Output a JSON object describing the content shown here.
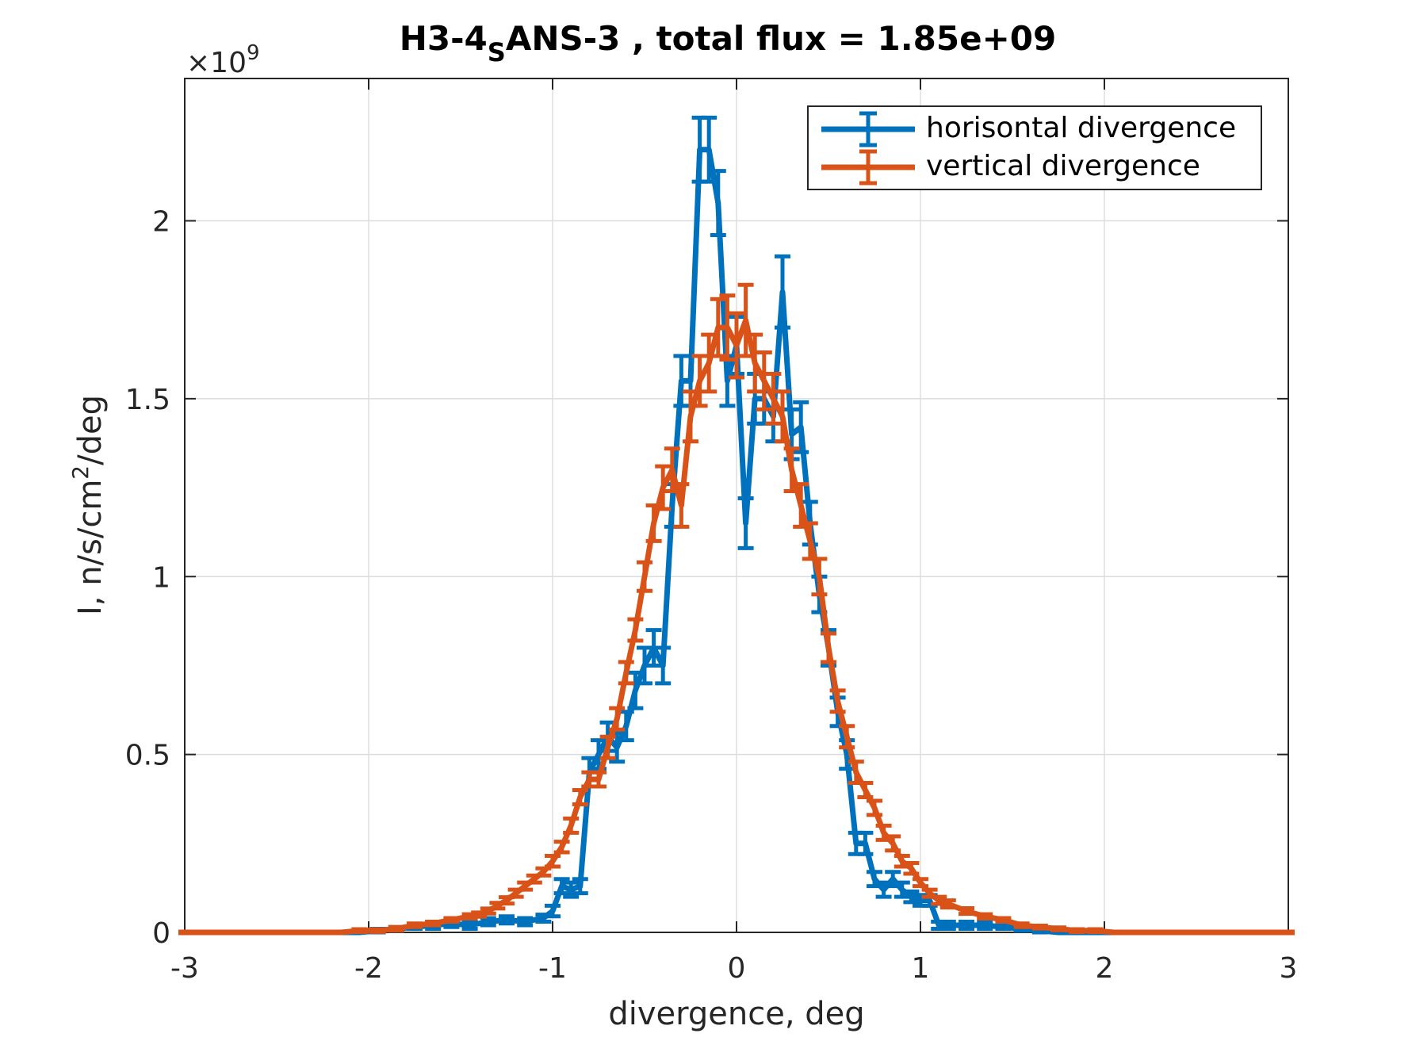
{
  "chart_data": {
    "type": "line",
    "title_prefix": "H3-4",
    "title_sub": "S",
    "title_suffix": "ANS-3 , total flux =  1.85e+09",
    "xlabel": "divergence, deg",
    "ylabel_prefix": "I, n/s/cm",
    "ylabel_sup": "2",
    "ylabel_suffix": "/deg",
    "y_multiplier_base": "×10",
    "y_multiplier_exp": "9",
    "xlim": [
      -3,
      3
    ],
    "ylim": [
      0,
      2.4
    ],
    "xticks": [
      -3,
      -2,
      -1,
      0,
      1,
      2,
      3
    ],
    "xtick_labels": [
      "-3",
      "-2",
      "-1",
      "0",
      "1",
      "2",
      "3"
    ],
    "yticks": [
      0,
      0.5,
      1,
      1.5,
      2
    ],
    "ytick_labels": [
      "0",
      "0.5",
      "1",
      "1.5",
      "2"
    ],
    "grid": true,
    "legend_position": "top-right",
    "errorbars": true,
    "series": [
      {
        "name": "horisontal divergence",
        "color": "#0072bd",
        "x": [
          -3.05,
          -2.95,
          -2.85,
          -2.75,
          -2.65,
          -2.55,
          -2.45,
          -2.35,
          -2.25,
          -2.15,
          -2.05,
          -1.95,
          -1.85,
          -1.75,
          -1.65,
          -1.55,
          -1.45,
          -1.35,
          -1.25,
          -1.15,
          -1.05,
          -1.0,
          -0.95,
          -0.9,
          -0.85,
          -0.8,
          -0.75,
          -0.7,
          -0.65,
          -0.6,
          -0.55,
          -0.5,
          -0.45,
          -0.4,
          -0.35,
          -0.3,
          -0.25,
          -0.2,
          -0.15,
          -0.1,
          -0.05,
          0.0,
          0.05,
          0.1,
          0.15,
          0.2,
          0.25,
          0.3,
          0.35,
          0.4,
          0.45,
          0.5,
          0.55,
          0.6,
          0.65,
          0.7,
          0.75,
          0.8,
          0.85,
          0.9,
          0.95,
          1.0,
          1.05,
          1.1,
          1.15,
          1.25,
          1.35,
          1.45,
          1.55,
          1.65,
          1.75,
          1.85,
          1.95,
          2.05,
          2.15,
          2.25,
          2.35,
          2.45,
          2.55,
          2.65,
          2.75,
          2.85,
          2.95,
          3.05
        ],
        "y": [
          0,
          0,
          0,
          0,
          0,
          0,
          0,
          0,
          0,
          0,
          0,
          0.005,
          0.01,
          0.015,
          0.02,
          0.025,
          0.02,
          0.03,
          0.035,
          0.03,
          0.04,
          0.06,
          0.13,
          0.12,
          0.13,
          0.45,
          0.5,
          0.55,
          0.52,
          0.58,
          0.68,
          0.75,
          0.8,
          0.75,
          1.2,
          1.55,
          1.55,
          2.2,
          2.2,
          2.05,
          1.55,
          1.65,
          1.15,
          1.5,
          1.5,
          1.45,
          1.8,
          1.4,
          1.42,
          1.15,
          0.95,
          0.8,
          0.62,
          0.5,
          0.25,
          0.25,
          0.15,
          0.12,
          0.15,
          0.12,
          0.1,
          0.09,
          0.09,
          0.02,
          0.02,
          0.02,
          0.02,
          0.015,
          0.01,
          0.005,
          0,
          0,
          0,
          0,
          0,
          0,
          0,
          0,
          0,
          0,
          0,
          0,
          0,
          0
        ],
        "err": [
          0,
          0,
          0,
          0,
          0,
          0,
          0,
          0,
          0,
          0,
          0,
          0.005,
          0.005,
          0.005,
          0.01,
          0.01,
          0.01,
          0.01,
          0.01,
          0.01,
          0.01,
          0.015,
          0.02,
          0.02,
          0.02,
          0.04,
          0.04,
          0.04,
          0.04,
          0.04,
          0.05,
          0.05,
          0.05,
          0.05,
          0.06,
          0.07,
          0.07,
          0.09,
          0.09,
          0.09,
          0.07,
          0.08,
          0.07,
          0.07,
          0.07,
          0.07,
          0.1,
          0.07,
          0.07,
          0.06,
          0.05,
          0.05,
          0.04,
          0.04,
          0.03,
          0.03,
          0.02,
          0.02,
          0.02,
          0.02,
          0.015,
          0.015,
          0.015,
          0.01,
          0.01,
          0.01,
          0.01,
          0.005,
          0.005,
          0.005,
          0,
          0,
          0,
          0,
          0,
          0,
          0,
          0,
          0,
          0,
          0,
          0,
          0,
          0
        ]
      },
      {
        "name": "vertical divergence",
        "color": "#d95319",
        "x": [
          -3.05,
          -2.95,
          -2.85,
          -2.75,
          -2.65,
          -2.55,
          -2.45,
          -2.35,
          -2.25,
          -2.15,
          -2.05,
          -1.95,
          -1.85,
          -1.75,
          -1.65,
          -1.55,
          -1.45,
          -1.4,
          -1.35,
          -1.3,
          -1.25,
          -1.2,
          -1.15,
          -1.1,
          -1.05,
          -1.0,
          -0.95,
          -0.9,
          -0.85,
          -0.8,
          -0.75,
          -0.7,
          -0.65,
          -0.6,
          -0.55,
          -0.5,
          -0.45,
          -0.4,
          -0.35,
          -0.3,
          -0.25,
          -0.2,
          -0.15,
          -0.1,
          -0.05,
          0.0,
          0.05,
          0.1,
          0.15,
          0.2,
          0.25,
          0.3,
          0.35,
          0.4,
          0.45,
          0.5,
          0.55,
          0.6,
          0.65,
          0.7,
          0.75,
          0.8,
          0.85,
          0.9,
          0.95,
          1.0,
          1.05,
          1.1,
          1.15,
          1.25,
          1.35,
          1.45,
          1.55,
          1.65,
          1.75,
          1.85,
          1.95,
          2.05,
          2.15,
          2.25,
          2.35,
          2.45,
          2.55,
          2.65,
          2.75,
          2.85,
          2.95,
          3.05
        ],
        "y": [
          0,
          0,
          0,
          0,
          0,
          0,
          0,
          0,
          0,
          0,
          0.005,
          0.005,
          0.01,
          0.02,
          0.025,
          0.035,
          0.045,
          0.05,
          0.06,
          0.075,
          0.09,
          0.11,
          0.13,
          0.15,
          0.17,
          0.2,
          0.24,
          0.3,
          0.38,
          0.43,
          0.43,
          0.52,
          0.6,
          0.73,
          0.85,
          1.0,
          1.15,
          1.25,
          1.3,
          1.2,
          1.45,
          1.55,
          1.6,
          1.7,
          1.7,
          1.65,
          1.72,
          1.6,
          1.55,
          1.5,
          1.45,
          1.3,
          1.2,
          1.1,
          1.0,
          0.8,
          0.65,
          0.55,
          0.45,
          0.4,
          0.35,
          0.28,
          0.25,
          0.2,
          0.18,
          0.14,
          0.11,
          0.09,
          0.08,
          0.06,
          0.045,
          0.035,
          0.02,
          0.015,
          0.01,
          0.005,
          0.005,
          0,
          0,
          0,
          0,
          0,
          0,
          0,
          0,
          0,
          0,
          0
        ],
        "err": [
          0,
          0,
          0,
          0,
          0,
          0,
          0,
          0,
          0,
          0,
          0.004,
          0.004,
          0.005,
          0.005,
          0.005,
          0.005,
          0.006,
          0.006,
          0.007,
          0.008,
          0.009,
          0.01,
          0.01,
          0.01,
          0.01,
          0.015,
          0.015,
          0.02,
          0.02,
          0.02,
          0.02,
          0.03,
          0.03,
          0.03,
          0.03,
          0.04,
          0.05,
          0.06,
          0.06,
          0.06,
          0.07,
          0.07,
          0.08,
          0.08,
          0.09,
          0.09,
          0.1,
          0.08,
          0.08,
          0.07,
          0.07,
          0.06,
          0.06,
          0.05,
          0.05,
          0.04,
          0.03,
          0.03,
          0.03,
          0.02,
          0.02,
          0.02,
          0.02,
          0.015,
          0.015,
          0.01,
          0.01,
          0.01,
          0.01,
          0.008,
          0.006,
          0.005,
          0.005,
          0.004,
          0.004,
          0.004,
          0.004,
          0,
          0,
          0,
          0,
          0,
          0,
          0,
          0,
          0,
          0,
          0
        ]
      }
    ]
  }
}
